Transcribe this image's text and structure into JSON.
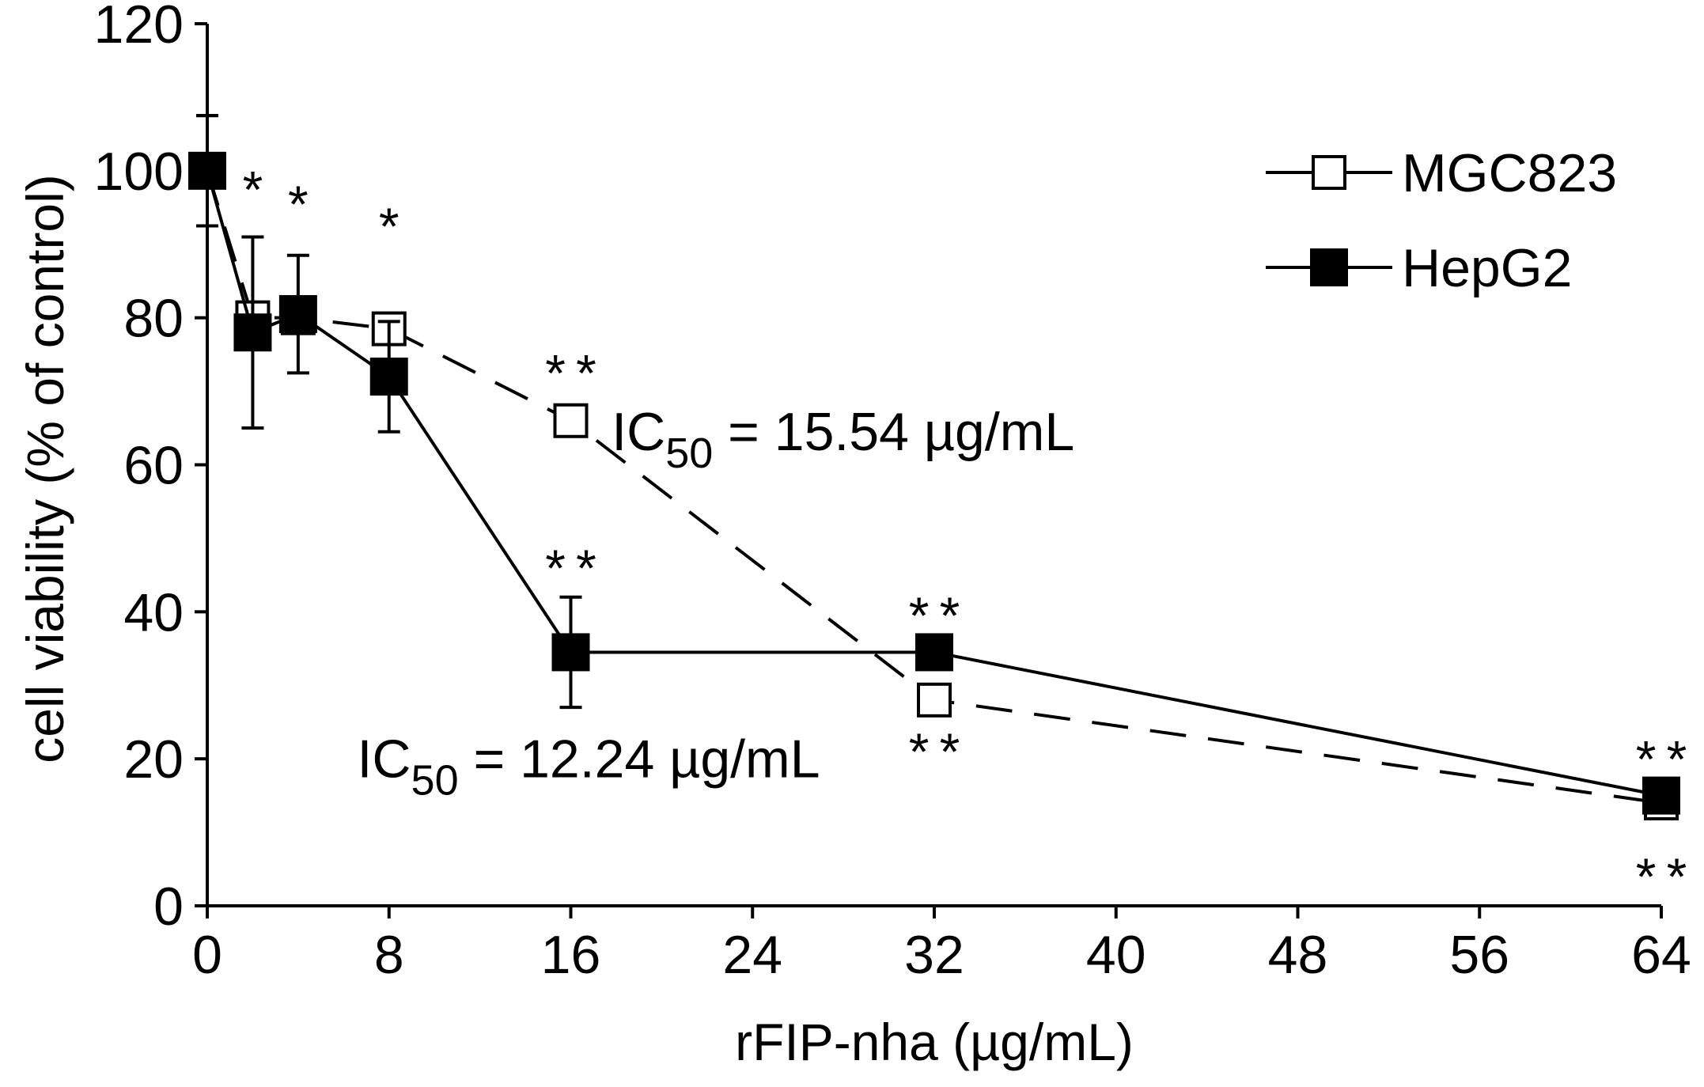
{
  "chart_data": {
    "type": "line",
    "title": "",
    "xlabel": "rFIP-nha (µg/mL)",
    "ylabel": "cell viability (% of control)",
    "xlim": [
      0,
      64
    ],
    "ylim": [
      0,
      120
    ],
    "xticks": [
      0,
      8,
      16,
      24,
      32,
      40,
      48,
      56,
      64
    ],
    "yticks": [
      0,
      20,
      40,
      60,
      80,
      100,
      120
    ],
    "legend_position": "top-right",
    "series": [
      {
        "name": "MGC823",
        "marker": "open-square",
        "line_style": "dashed",
        "x": [
          0,
          2,
          4,
          8,
          16,
          32,
          64
        ],
        "y": [
          100,
          80,
          80,
          78.5,
          66,
          28,
          14
        ],
        "error": [
          7.5,
          0,
          0,
          1,
          0.8,
          1.2,
          0.5
        ]
      },
      {
        "name": "HepG2",
        "marker": "filled-square",
        "line_style": "solid",
        "x": [
          0,
          2,
          4,
          8,
          16,
          32,
          64
        ],
        "y": [
          100,
          78,
          80.5,
          72,
          34.5,
          34.5,
          15
        ],
        "error": [
          7.5,
          13,
          8,
          7.5,
          7.5,
          1,
          1
        ]
      }
    ],
    "significance_marks": [
      {
        "x": 2,
        "y": 95,
        "label": "*"
      },
      {
        "x": 4,
        "y": 93,
        "label": "*"
      },
      {
        "x": 8,
        "y": 90,
        "label": "*"
      },
      {
        "x": 16,
        "y": 70,
        "label": "**"
      },
      {
        "x": 16,
        "y": 43.5,
        "label": "**"
      },
      {
        "x": 32,
        "y": 37,
        "label": "**"
      },
      {
        "x": 32,
        "y": 18.5,
        "label": "**"
      },
      {
        "x": 64,
        "y": 17.5,
        "label": "**"
      },
      {
        "x": 64,
        "y": 1.5,
        "label": "**"
      }
    ],
    "annotations": [
      {
        "series": "MGC823",
        "prefix": "IC",
        "subscript": "50",
        "value_text": " = 15.54 µg/mL",
        "x": 17.8,
        "y": 62
      },
      {
        "series": "HepG2",
        "prefix": "IC",
        "subscript": "50",
        "value_text": " = 12.24 µg/mL",
        "x": 6.6,
        "y": 17.5
      }
    ]
  }
}
